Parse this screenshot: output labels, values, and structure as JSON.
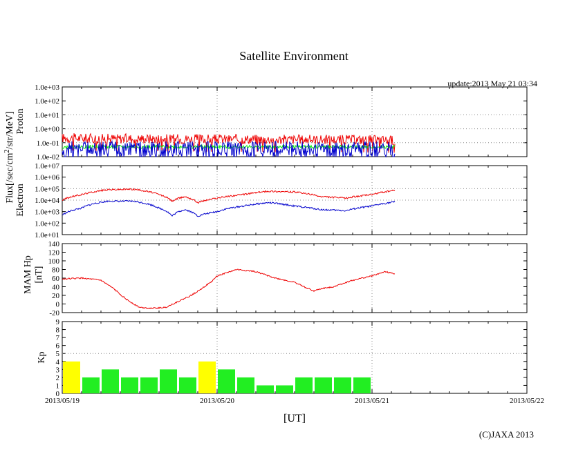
{
  "title": "Satellite Environment",
  "update": "update:2013 May 21 03:34",
  "copyright": "(C)JAXA 2013",
  "xlabel": "[UT]",
  "flux_label": "Flux[/sec/cm",
  "flux_sup": "2",
  "flux_label2": "/str/MeV]",
  "x_ticks": [
    "2013/05/19",
    "2013/05/20",
    "2013/05/21",
    "2013/05/22"
  ],
  "colors": {
    "red": "#ee0000",
    "blue": "#0000cc",
    "green": "#00ee00",
    "yellow": "#ffff00",
    "bar_green": "#22ee22"
  },
  "chart_data": [
    {
      "type": "line",
      "name": "proton",
      "ylabel": "Proton",
      "yscale": "log",
      "ylim": [
        0.01,
        1000
      ],
      "yticks": [
        "1.0e-02",
        "1.0e-01",
        "1.0e+00",
        "1.0e+01",
        "1.0e+02",
        "1.0e+03"
      ],
      "xlim": [
        "2013/05/19",
        "2013/05/22"
      ],
      "series": [
        {
          "color": "red",
          "x": [
            "05/19 00:00",
            "05/19 06:00",
            "05/19 12:00",
            "05/19 18:00",
            "05/20 00:00",
            "05/20 06:00",
            "05/20 12:00",
            "05/20 18:00",
            "05/21 00:00",
            "05/21 03:34"
          ],
          "values": [
            0.22,
            0.2,
            0.2,
            0.19,
            0.18,
            0.18,
            0.17,
            0.17,
            0.16,
            0.15
          ]
        },
        {
          "color": "green",
          "x": [
            "05/19 00:00",
            "05/19 12:00",
            "05/20 00:00",
            "05/20 12:00",
            "05/21 00:00",
            "05/21 03:34"
          ],
          "values": [
            0.05,
            0.05,
            0.05,
            0.05,
            0.05,
            0.05
          ]
        },
        {
          "color": "blue",
          "x": [
            "05/19 00:00",
            "05/19 12:00",
            "05/20 00:00",
            "05/20 12:00",
            "05/21 00:00",
            "05/21 03:34"
          ],
          "values": [
            0.04,
            0.04,
            0.04,
            0.04,
            0.04,
            0.04
          ]
        }
      ]
    },
    {
      "type": "line",
      "name": "electron",
      "ylabel": "Electron",
      "yscale": "log",
      "ylim": [
        10,
        10000000
      ],
      "yticks": [
        "1.0e+01",
        "1.0e+02",
        "1.0e+03",
        "1.0e+04",
        "1.0e+05",
        "1.0e+06",
        "1.0e+07"
      ],
      "xlim": [
        "2013/05/19",
        "2013/05/22"
      ],
      "series": [
        {
          "color": "red",
          "x": [
            "05/19 00:00",
            "05/19 03:00",
            "05/19 07:00",
            "05/19 11:00",
            "05/19 15:00",
            "05/19 17:00",
            "05/19 19:00",
            "05/19 21:00",
            "05/20 00:00",
            "05/20 04:00",
            "05/20 08:00",
            "05/20 12:00",
            "05/20 16:00",
            "05/20 20:00",
            "05/21 00:00",
            "05/21 03:34"
          ],
          "values": [
            10000,
            30000,
            80000,
            90000,
            30000,
            8000,
            20000,
            6000,
            15000,
            30000,
            60000,
            50000,
            20000,
            15000,
            30000,
            70000
          ]
        },
        {
          "color": "blue",
          "x": [
            "05/19 00:00",
            "05/19 03:00",
            "05/19 07:00",
            "05/19 11:00",
            "05/19 15:00",
            "05/19 17:00",
            "05/19 19:00",
            "05/19 21:00",
            "05/20 00:00",
            "05/20 04:00",
            "05/20 08:00",
            "05/20 12:00",
            "05/20 16:00",
            "05/20 20:00",
            "05/21 00:00",
            "05/21 03:34"
          ],
          "values": [
            500,
            2000,
            8000,
            8000,
            2000,
            400,
            1500,
            400,
            1000,
            3000,
            6000,
            3000,
            1500,
            1200,
            3000,
            7000
          ]
        }
      ]
    },
    {
      "type": "line",
      "name": "mam-hp",
      "ylabel": "MAM Hp",
      "ylabel2": "[nT]",
      "ylim": [
        -20,
        140
      ],
      "yticks": [
        "-20",
        "0",
        "20",
        "40",
        "60",
        "80",
        "100",
        "120",
        "140"
      ],
      "xlim": [
        "2013/05/19",
        "2013/05/22"
      ],
      "series": [
        {
          "color": "red",
          "x": [
            "05/19 00:00",
            "05/19 03:00",
            "05/19 06:00",
            "05/19 08:00",
            "05/19 10:00",
            "05/19 12:00",
            "05/19 14:00",
            "05/19 16:00",
            "05/19 20:00",
            "05/19 23:00",
            "05/20 00:00",
            "05/20 03:00",
            "05/20 06:00",
            "05/20 09:00",
            "05/20 12:00",
            "05/20 15:00",
            "05/20 16:00",
            "05/20 18:00",
            "05/20 21:00",
            "05/21 00:00",
            "05/21 02:00",
            "05/21 03:34"
          ],
          "values": [
            58,
            60,
            55,
            35,
            10,
            -8,
            -10,
            -8,
            20,
            50,
            65,
            80,
            75,
            60,
            50,
            30,
            35,
            40,
            55,
            65,
            75,
            70
          ]
        }
      ]
    },
    {
      "type": "bar",
      "name": "kp",
      "ylabel": "Kp",
      "ylim": [
        0,
        9
      ],
      "yticks": [
        "0",
        "1",
        "2",
        "3",
        "4",
        "5",
        "6",
        "7",
        "8",
        "9"
      ],
      "xlim": [
        "2013/05/19",
        "2013/05/22"
      ],
      "bin_hours": 3,
      "threshold": 5,
      "values": [
        4,
        2,
        3,
        2,
        2,
        3,
        2,
        4,
        3,
        2,
        1,
        1,
        2,
        2,
        2,
        2
      ],
      "colors": [
        "yellow",
        "green",
        "green",
        "green",
        "green",
        "green",
        "green",
        "yellow",
        "green",
        "green",
        "green",
        "green",
        "green",
        "green",
        "green",
        "green"
      ]
    }
  ]
}
